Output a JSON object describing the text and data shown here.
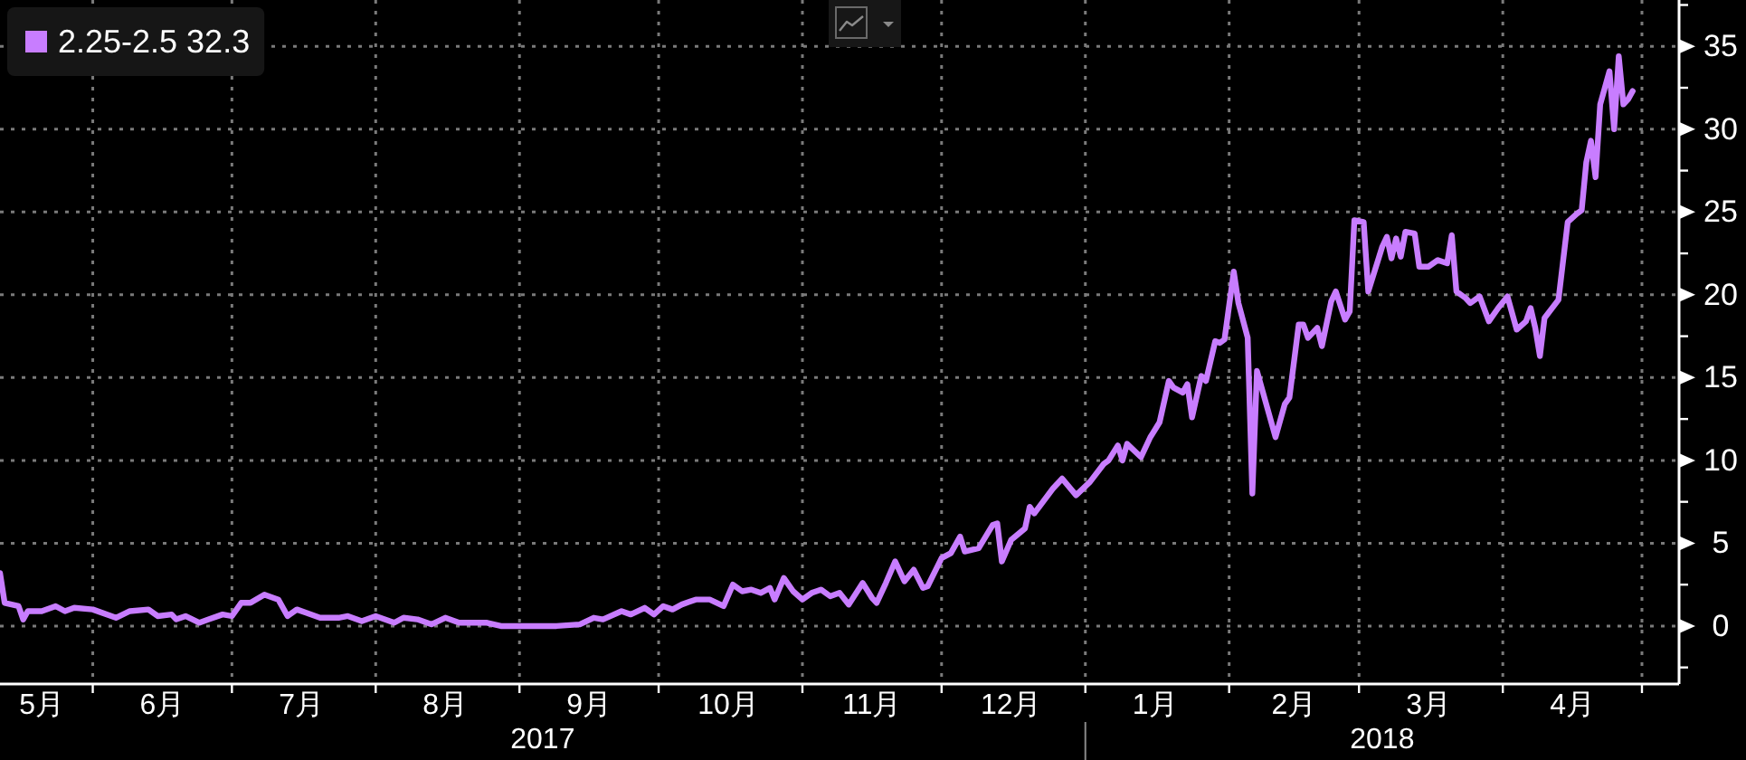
{
  "chart_data": {
    "type": "line",
    "x": [
      "2017-05-12",
      "2017-05-13",
      "2017-05-16",
      "2017-05-17",
      "2017-05-18",
      "2017-05-21",
      "2017-05-24",
      "2017-05-26",
      "2017-05-28",
      "2017-06-01",
      "2017-06-06",
      "2017-06-09",
      "2017-06-13",
      "2017-06-15",
      "2017-06-18",
      "2017-06-19",
      "2017-06-21",
      "2017-06-24",
      "2017-06-26",
      "2017-06-29",
      "2017-07-01",
      "2017-07-03",
      "2017-07-05",
      "2017-07-08",
      "2017-07-11",
      "2017-07-13",
      "2017-07-15",
      "2017-07-17",
      "2017-07-20",
      "2017-07-24",
      "2017-07-26",
      "2017-07-29",
      "2017-08-01",
      "2017-08-05",
      "2017-08-07",
      "2017-08-10",
      "2017-08-13",
      "2017-08-16",
      "2017-08-19",
      "2017-08-25",
      "2017-08-28",
      "2017-09-03",
      "2017-09-09",
      "2017-09-14",
      "2017-09-17",
      "2017-09-19",
      "2017-09-23",
      "2017-09-25",
      "2017-09-28",
      "2017-09-30",
      "2017-10-02",
      "2017-10-04",
      "2017-10-06",
      "2017-10-09",
      "2017-10-12",
      "2017-10-15",
      "2017-10-17",
      "2017-10-19",
      "2017-10-21",
      "2017-10-23",
      "2017-10-25",
      "2017-10-26",
      "2017-10-28",
      "2017-10-30",
      "2017-11-01",
      "2017-11-03",
      "2017-11-05",
      "2017-11-07",
      "2017-11-09",
      "2017-11-11",
      "2017-11-14",
      "2017-11-16",
      "2017-11-17",
      "2017-11-19",
      "2017-11-21",
      "2017-11-23",
      "2017-11-25",
      "2017-11-27",
      "2017-11-28",
      "2017-12-01",
      "2017-12-03",
      "2017-12-05",
      "2017-12-06",
      "2017-12-09",
      "2017-12-12",
      "2017-12-13",
      "2017-12-14",
      "2017-12-16",
      "2017-12-19",
      "2017-12-20",
      "2017-12-21",
      "2017-12-25",
      "2017-12-27",
      "2017-12-30",
      "2018-01-02",
      "2018-01-05",
      "2018-01-06",
      "2018-01-08",
      "2018-01-09",
      "2018-01-10",
      "2018-01-13",
      "2018-01-15",
      "2018-01-17",
      "2018-01-19",
      "2018-01-20",
      "2018-01-22",
      "2018-01-23",
      "2018-01-24",
      "2018-01-26",
      "2018-01-27",
      "2018-01-29",
      "2018-01-30",
      "2018-01-31",
      "2018-02-02",
      "2018-02-03",
      "2018-02-05",
      "2018-02-06",
      "2018-02-07",
      "2018-02-11",
      "2018-02-13",
      "2018-02-14",
      "2018-02-16",
      "2018-02-17",
      "2018-02-18",
      "2018-02-20",
      "2018-02-21",
      "2018-02-23",
      "2018-02-24",
      "2018-02-26",
      "2018-02-27",
      "2018-02-28",
      "2018-03-02",
      "2018-03-03",
      "2018-03-06",
      "2018-03-07",
      "2018-03-08",
      "2018-03-09",
      "2018-03-10",
      "2018-03-11",
      "2018-03-13",
      "2018-03-14",
      "2018-03-16",
      "2018-03-18",
      "2018-03-20",
      "2018-03-21",
      "2018-03-22",
      "2018-03-24",
      "2018-03-25",
      "2018-03-27",
      "2018-03-29",
      "2018-03-31",
      "2018-04-02",
      "2018-04-04",
      "2018-04-06",
      "2018-04-07",
      "2018-04-08",
      "2018-04-09",
      "2018-04-10",
      "2018-04-13",
      "2018-04-15",
      "2018-04-17",
      "2018-04-18",
      "2018-04-19",
      "2018-04-20",
      "2018-04-21",
      "2018-04-22",
      "2018-04-24",
      "2018-04-25",
      "2018-04-26",
      "2018-04-27",
      "2018-04-28",
      "2018-04-29"
    ],
    "series": [
      {
        "name": "2.25-2.5 32.3",
        "color": "#c87dff",
        "values": [
          3.2,
          1.4,
          1.2,
          0.4,
          0.9,
          0.9,
          1.2,
          0.9,
          1.1,
          1.0,
          0.5,
          0.9,
          1.0,
          0.6,
          0.7,
          0.4,
          0.6,
          0.2,
          0.4,
          0.7,
          0.6,
          1.4,
          1.4,
          1.9,
          1.6,
          0.6,
          1.0,
          0.8,
          0.5,
          0.5,
          0.6,
          0.3,
          0.6,
          0.2,
          0.5,
          0.4,
          0.1,
          0.5,
          0.2,
          0.2,
          0.0,
          0.0,
          0.0,
          0.1,
          0.5,
          0.4,
          0.9,
          0.7,
          1.1,
          0.7,
          1.2,
          1.0,
          1.3,
          1.6,
          1.6,
          1.2,
          2.5,
          2.1,
          2.2,
          2.0,
          2.3,
          1.6,
          2.9,
          2.1,
          1.6,
          2.0,
          2.2,
          1.8,
          2.0,
          1.3,
          2.6,
          1.7,
          1.4,
          2.6,
          3.9,
          2.7,
          3.4,
          2.3,
          2.4,
          4.1,
          4.4,
          5.4,
          4.5,
          4.7,
          6.1,
          6.2,
          3.9,
          5.2,
          5.9,
          7.2,
          6.8,
          8.3,
          8.9,
          7.9,
          8.7,
          9.8,
          10.0,
          10.9,
          10.0,
          11.0,
          10.2,
          11.4,
          12.3,
          14.8,
          14.4,
          14.1,
          14.6,
          12.6,
          15.1,
          14.8,
          17.2,
          17.1,
          17.3,
          21.4,
          19.5,
          17.4,
          8.0,
          15.4,
          11.4,
          13.4,
          13.8,
          18.2,
          18.2,
          17.4,
          18.0,
          16.9,
          19.6,
          20.2,
          18.5,
          19.0,
          24.5,
          24.4,
          20.2,
          22.9,
          23.5,
          22.2,
          23.4,
          22.3,
          23.8,
          23.7,
          21.7,
          21.7,
          22.1,
          21.9,
          23.6,
          20.2,
          19.8,
          19.5,
          19.9,
          18.4,
          19.2,
          19.9,
          17.9,
          18.4,
          19.2,
          18.0,
          16.3,
          18.6,
          19.7,
          24.4,
          24.9,
          25.1,
          28.0,
          29.3,
          27.1,
          31.5,
          33.5,
          30.0,
          34.4,
          31.5,
          31.8,
          32.3
        ]
      }
    ],
    "xlim": [
      "2017-05-12",
      "2018-05-09"
    ],
    "xticks": [
      {
        "value": "2017-05-21",
        "label": "5月"
      },
      {
        "value": "2017-06-01",
        "label": null
      },
      {
        "value": "2017-06-16",
        "label": "6月"
      },
      {
        "value": "2017-07-01",
        "label": null
      },
      {
        "value": "2017-07-16",
        "label": "7月"
      },
      {
        "value": "2017-08-01",
        "label": null
      },
      {
        "value": "2017-08-16",
        "label": "8月"
      },
      {
        "value": "2017-09-01",
        "label": null
      },
      {
        "value": "2017-09-16",
        "label": "9月"
      },
      {
        "value": "2017-10-01",
        "label": null
      },
      {
        "value": "2017-10-16",
        "label": "10月"
      },
      {
        "value": "2017-11-01",
        "label": null
      },
      {
        "value": "2017-11-16",
        "label": "11月"
      },
      {
        "value": "2017-12-01",
        "label": null
      },
      {
        "value": "2017-12-16",
        "label": "12月"
      },
      {
        "value": "2018-01-01",
        "label": null
      },
      {
        "value": "2018-01-16",
        "label": "1月"
      },
      {
        "value": "2018-02-01",
        "label": null
      },
      {
        "value": "2018-02-15",
        "label": "2月"
      },
      {
        "value": "2018-03-01",
        "label": null
      },
      {
        "value": "2018-03-16",
        "label": "3月"
      },
      {
        "value": "2018-04-01",
        "label": null
      },
      {
        "value": "2018-04-16",
        "label": "4月"
      },
      {
        "value": "2018-05-01",
        "label": null
      }
    ],
    "x2lim": [
      "2017-05-12",
      "2018-05-09"
    ],
    "x2ticks": [
      {
        "value": "2017-09-06",
        "label": "2017"
      },
      {
        "value": "2018-01-01",
        "label": null
      },
      {
        "value": "2018-03-06",
        "label": "2018"
      }
    ],
    "ylim": [
      -3.5,
      37.8
    ],
    "yticks": [
      {
        "value": -2.5,
        "label": null
      },
      0,
      {
        "value": 2.5,
        "label": null
      },
      5,
      {
        "value": 7.5,
        "label": null
      },
      10,
      {
        "value": 12.5,
        "label": null
      },
      15,
      {
        "value": 17.5,
        "label": null
      },
      20,
      {
        "value": 22.5,
        "label": null
      },
      25,
      {
        "value": 27.5,
        "label": null
      },
      30,
      {
        "value": 32.5,
        "label": null
      },
      35,
      {
        "value": 37.5,
        "label": null
      }
    ],
    "grid": true,
    "legend": "top left"
  }
}
